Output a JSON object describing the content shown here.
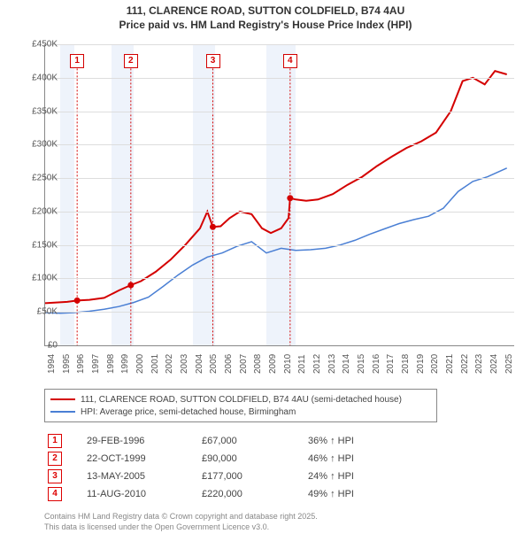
{
  "title_line1": "111, CLARENCE ROAD, SUTTON COLDFIELD, B74 4AU",
  "title_line2": "Price paid vs. HM Land Registry's House Price Index (HPI)",
  "chart": {
    "type": "line",
    "xlim": [
      1994,
      2025.8
    ],
    "ylim": [
      0,
      450
    ],
    "ytick_step": 50,
    "ylabels": [
      "£0",
      "£50K",
      "£100K",
      "£150K",
      "£200K",
      "£250K",
      "£300K",
      "£350K",
      "£400K",
      "£450K"
    ],
    "xticks": [
      1994,
      1995,
      1996,
      1997,
      1998,
      1999,
      2000,
      2001,
      2002,
      2003,
      2004,
      2005,
      2006,
      2007,
      2008,
      2009,
      2010,
      2011,
      2012,
      2013,
      2014,
      2015,
      2016,
      2017,
      2018,
      2019,
      2020,
      2021,
      2022,
      2023,
      2024,
      2025
    ],
    "bands": [
      {
        "from": 1995,
        "to": 1996
      },
      {
        "from": 1998.5,
        "to": 2000
      },
      {
        "from": 2004,
        "to": 2005.5
      },
      {
        "from": 2009,
        "to": 2011
      }
    ],
    "grid_color": "#dddddd",
    "background_color": "#ffffff",
    "series": [
      {
        "name": "price_paid",
        "color": "#d40000",
        "width": 2,
        "x": [
          1994,
          1995.5,
          1996.17,
          1997,
          1998,
          1999,
          1999.81,
          2000.5,
          2001.5,
          2002.5,
          2003.5,
          2004.5,
          2005.0,
          2005.37,
          2005.9,
          2006.5,
          2007.2,
          2008,
          2008.7,
          2009.3,
          2010,
          2010.5,
          2010.61,
          2011,
          2011.7,
          2012.5,
          2013.5,
          2014.5,
          2015.5,
          2016.5,
          2017.5,
          2018.5,
          2019.5,
          2020.5,
          2021.5,
          2022.3,
          2023,
          2023.8,
          2024.5,
          2025.3
        ],
        "y": [
          63,
          65,
          67,
          68,
          71,
          82,
          90,
          96,
          110,
          128,
          150,
          175,
          200,
          177,
          178,
          190,
          200,
          196,
          175,
          168,
          175,
          190,
          220,
          218,
          216,
          218,
          226,
          240,
          252,
          268,
          282,
          295,
          305,
          318,
          350,
          395,
          400,
          390,
          410,
          405
        ]
      },
      {
        "name": "hpi",
        "color": "#4a7fd4",
        "width": 1.5,
        "x": [
          1994,
          1995,
          1996,
          1997,
          1998,
          1999,
          2000,
          2001,
          2002,
          2003,
          2004,
          2005,
          2006,
          2007,
          2008,
          2009,
          2010,
          2011,
          2012,
          2013,
          2014,
          2015,
          2016,
          2017,
          2018,
          2019,
          2020,
          2021,
          2022,
          2023,
          2024,
          2025.3
        ],
        "y": [
          49,
          48,
          49,
          51,
          54,
          58,
          64,
          72,
          88,
          105,
          120,
          132,
          138,
          148,
          155,
          138,
          145,
          142,
          143,
          145,
          150,
          157,
          166,
          174,
          182,
          188,
          193,
          205,
          230,
          245,
          252,
          265
        ]
      }
    ],
    "markers": [
      {
        "n": "1",
        "x": 1996.17,
        "ytop": 435,
        "box_color": "#d40000"
      },
      {
        "n": "2",
        "x": 1999.81,
        "ytop": 435,
        "box_color": "#d40000"
      },
      {
        "n": "3",
        "x": 2005.37,
        "ytop": 435,
        "box_color": "#d40000"
      },
      {
        "n": "4",
        "x": 2010.61,
        "ytop": 435,
        "box_color": "#d40000"
      }
    ],
    "sale_points": [
      {
        "x": 1996.17,
        "y": 67
      },
      {
        "x": 1999.81,
        "y": 90
      },
      {
        "x": 2005.37,
        "y": 177
      },
      {
        "x": 2010.61,
        "y": 220
      }
    ]
  },
  "legend": {
    "items": [
      {
        "color": "#d40000",
        "label": "111, CLARENCE ROAD, SUTTON COLDFIELD, B74 4AU (semi-detached house)"
      },
      {
        "color": "#4a7fd4",
        "label": "HPI: Average price, semi-detached house, Birmingham"
      }
    ]
  },
  "sales": [
    {
      "n": "1",
      "date": "29-FEB-1996",
      "price": "£67,000",
      "pct": "36% ↑ HPI"
    },
    {
      "n": "2",
      "date": "22-OCT-1999",
      "price": "£90,000",
      "pct": "46% ↑ HPI"
    },
    {
      "n": "3",
      "date": "13-MAY-2005",
      "price": "£177,000",
      "pct": "24% ↑ HPI"
    },
    {
      "n": "4",
      "date": "11-AUG-2010",
      "price": "£220,000",
      "pct": "49% ↑ HPI"
    }
  ],
  "footer_line1": "Contains HM Land Registry data © Crown copyright and database right 2025.",
  "footer_line2": "This data is licensed under the Open Government Licence v3.0."
}
